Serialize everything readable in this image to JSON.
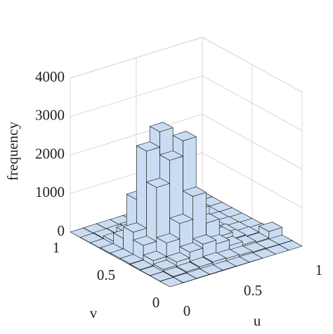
{
  "chart_data": {
    "type": "bar3",
    "xlabel": "u",
    "ylabel": "v",
    "zlabel": "frequency",
    "u_edges": [
      0,
      0.1,
      0.2,
      0.3,
      0.4,
      0.5,
      0.6,
      0.7,
      0.8,
      0.9,
      1
    ],
    "v_edges": [
      0,
      0.1,
      0.2,
      0.3,
      0.4,
      0.5,
      0.6,
      0.7,
      0.8,
      0.9,
      1
    ],
    "counts": [
      [
        0,
        5,
        10,
        20,
        30,
        30,
        20,
        10,
        5,
        0
      ],
      [
        5,
        20,
        60,
        150,
        400,
        600,
        300,
        80,
        20,
        5
      ],
      [
        10,
        40,
        150,
        500,
        1800,
        2600,
        1200,
        200,
        30,
        10
      ],
      [
        10,
        60,
        300,
        900,
        2400,
        3000,
        2200,
        300,
        40,
        10
      ],
      [
        10,
        80,
        400,
        1500,
        2800,
        2000,
        800,
        150,
        30,
        5
      ],
      [
        5,
        60,
        300,
        700,
        900,
        500,
        200,
        60,
        10,
        5
      ],
      [
        5,
        40,
        150,
        250,
        250,
        150,
        60,
        20,
        5,
        0
      ],
      [
        0,
        20,
        60,
        80,
        80,
        50,
        20,
        10,
        0,
        0
      ],
      [
        0,
        10,
        30,
        40,
        30,
        20,
        10,
        5,
        0,
        0
      ],
      [
        0,
        5,
        200,
        20,
        10,
        5,
        0,
        0,
        0,
        0
      ]
    ],
    "color": "#cadcf2",
    "xlim": [
      0,
      1
    ],
    "ylim": [
      0,
      1
    ],
    "zlim": [
      0,
      4000
    ],
    "xticks": [
      0,
      0.5,
      1
    ],
    "yticks": [
      0,
      0.5,
      1
    ],
    "zticks": [
      0,
      1000,
      2000,
      3000,
      4000
    ],
    "grid": true
  }
}
